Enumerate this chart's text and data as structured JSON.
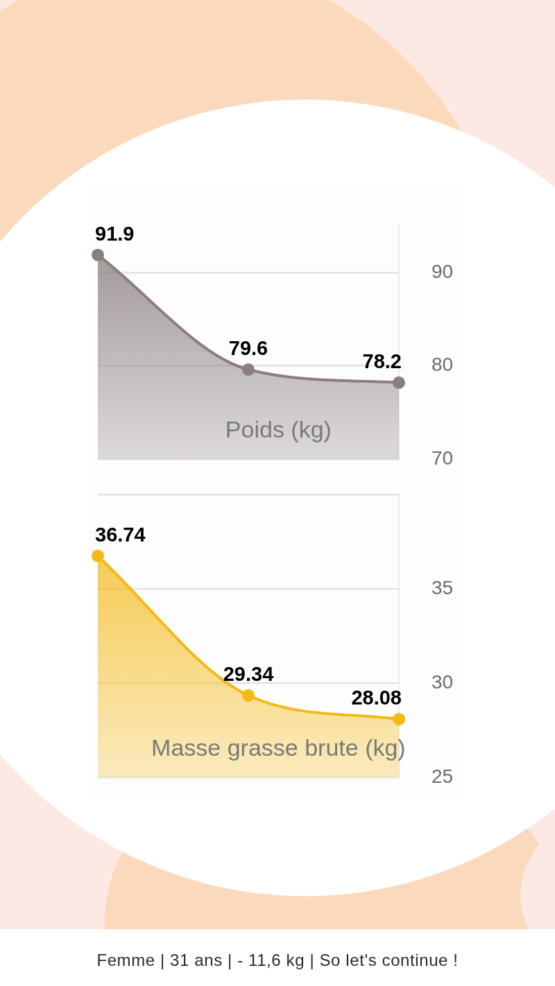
{
  "chart_data": [
    {
      "type": "area",
      "title": "Poids (kg)",
      "categories": [
        null,
        null,
        null
      ],
      "values": [
        91.9,
        79.6,
        78.2
      ],
      "color": "#8a7e7e",
      "ylim": [
        70,
        95
      ],
      "yticks": [
        70,
        80,
        90
      ],
      "grid": "y",
      "tick_labels": "y",
      "marker": "circle",
      "data_labels": true
    },
    {
      "type": "area",
      "title": "Masse grasse brute (kg)",
      "categories": [
        null,
        null,
        null
      ],
      "values": [
        36.74,
        29.34,
        28.08
      ],
      "color": "#f4b914",
      "ylim": [
        25,
        40
      ],
      "yticks": [
        25,
        30,
        35,
        {
          "value": 40,
          "label": null
        }
      ],
      "grid": "y",
      "tick_labels": "y",
      "marker": "circle",
      "data_labels": true,
      "annotations": [
        "Femme | 31 ans | - 11,6 kg | So let's continue !"
      ]
    }
  ]
}
